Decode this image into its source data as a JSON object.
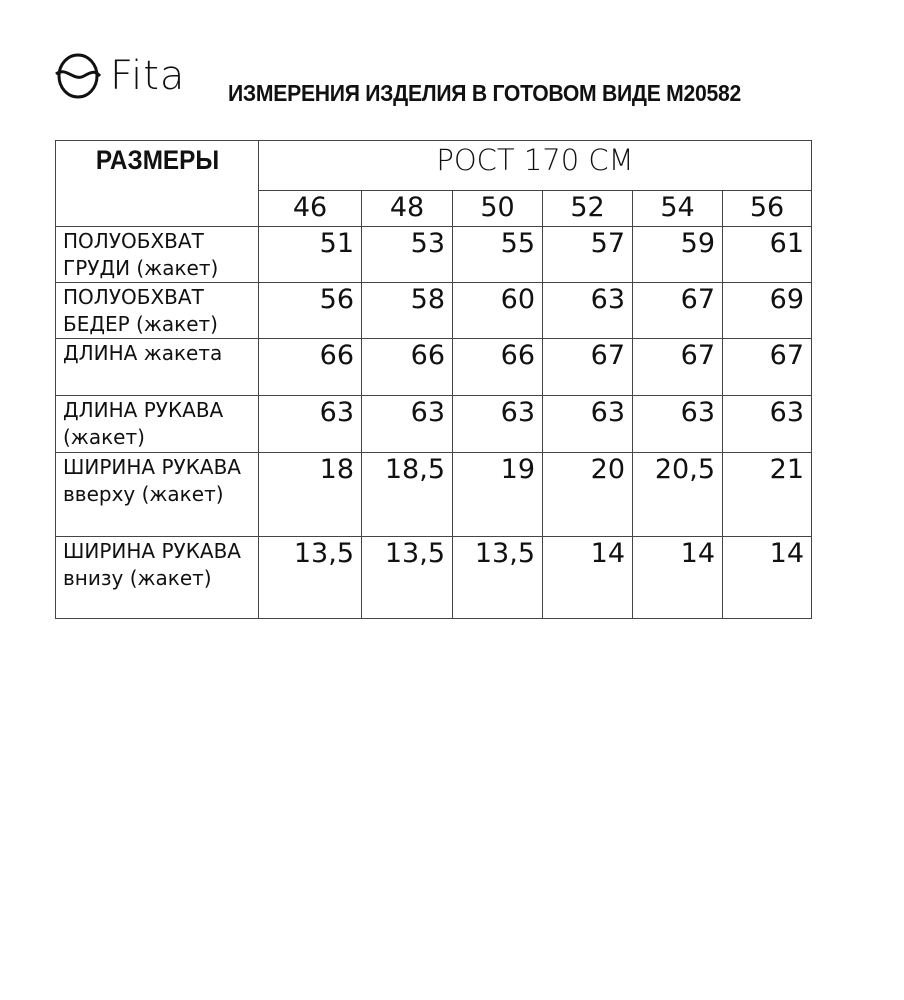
{
  "brand": {
    "logo_text": "Fita"
  },
  "title": "ИЗМЕРЕНИЯ ИЗДЕЛИЯ В ГОТОВОМ ВИДЕ М20582",
  "table": {
    "corner_header": "РАЗМЕРЫ",
    "group_header": "РОСТ 170 СМ",
    "sizes": [
      "46",
      "48",
      "50",
      "52",
      "54",
      "56"
    ],
    "rows": [
      {
        "label": "ПОЛУОБХВАТ ГРУДИ (жакет)",
        "values": [
          "51",
          "53",
          "55",
          "57",
          "59",
          "61"
        ]
      },
      {
        "label": "ПОЛУОБХВАТ БЕДЕР (жакет)",
        "values": [
          "56",
          "58",
          "60",
          "63",
          "67",
          "69"
        ]
      },
      {
        "label": "ДЛИНА жакета",
        "values": [
          "66",
          "66",
          "66",
          "67",
          "67",
          "67"
        ]
      },
      {
        "label": "ДЛИНА РУКАВА (жакет)",
        "values": [
          "63",
          "63",
          "63",
          "63",
          "63",
          "63"
        ]
      },
      {
        "label": "ШИРИНА РУКАВА вверху (жакет)",
        "values": [
          "18",
          "18,5",
          "19",
          "20",
          "20,5",
          "21"
        ]
      },
      {
        "label": "ШИРИНА РУКАВА внизу (жакет)",
        "values": [
          "13,5",
          "13,5",
          "13,5",
          "14",
          "14",
          "14"
        ]
      }
    ]
  }
}
